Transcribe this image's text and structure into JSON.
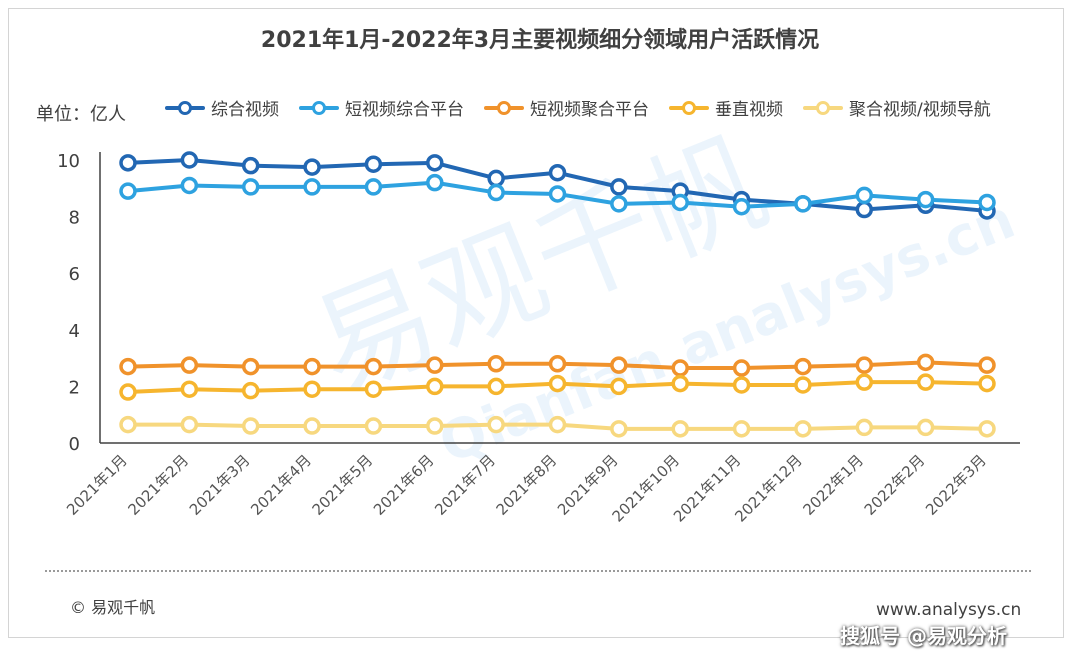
{
  "title": "2021年1月-2022年3月主要视频细分领域用户活跃情况",
  "unit_label": "单位：亿人",
  "copyright": "© 易观千帆",
  "site": "www.analysys.cn",
  "corner_watermark": "搜狐号 @易观分析",
  "watermark_text": "易观千帆",
  "watermark_url": "Qianfan.analysys.cn",
  "chart_data": {
    "type": "line",
    "categories": [
      "2021年1月",
      "2021年2月",
      "2021年3月",
      "2021年4月",
      "2021年5月",
      "2021年6月",
      "2021年7月",
      "2021年8月",
      "2021年9月",
      "2021年10月",
      "2021年11月",
      "2021年12月",
      "2022年1月",
      "2022年2月",
      "2022年3月"
    ],
    "ylim": [
      0,
      10
    ],
    "yticks": [
      0,
      2,
      4,
      6,
      8,
      10
    ],
    "legend_position": "top",
    "grid": false,
    "series": [
      {
        "name": "综合视频",
        "color": "#2267b3",
        "values": [
          9.9,
          10.0,
          9.8,
          9.75,
          9.85,
          9.9,
          9.35,
          9.55,
          9.05,
          8.9,
          8.6,
          8.45,
          8.25,
          8.4,
          8.2
        ]
      },
      {
        "name": "短视频综合平台",
        "color": "#2ea2e0",
        "values": [
          8.9,
          9.1,
          9.05,
          9.05,
          9.05,
          9.2,
          8.85,
          8.8,
          8.45,
          8.5,
          8.35,
          8.45,
          8.75,
          8.6,
          8.5
        ]
      },
      {
        "name": "短视频聚合平台",
        "color": "#f0922b",
        "values": [
          2.7,
          2.75,
          2.7,
          2.7,
          2.7,
          2.75,
          2.8,
          2.8,
          2.75,
          2.65,
          2.65,
          2.7,
          2.75,
          2.85,
          2.75
        ]
      },
      {
        "name": "垂直视频",
        "color": "#f6b52e",
        "values": [
          1.8,
          1.9,
          1.85,
          1.9,
          1.9,
          2.0,
          2.0,
          2.1,
          2.0,
          2.1,
          2.05,
          2.05,
          2.15,
          2.15,
          2.1
        ]
      },
      {
        "name": "聚合视频/视频导航",
        "color": "#f7d87f",
        "values": [
          0.65,
          0.65,
          0.6,
          0.6,
          0.6,
          0.6,
          0.65,
          0.65,
          0.5,
          0.5,
          0.5,
          0.5,
          0.55,
          0.55,
          0.5
        ]
      }
    ]
  }
}
